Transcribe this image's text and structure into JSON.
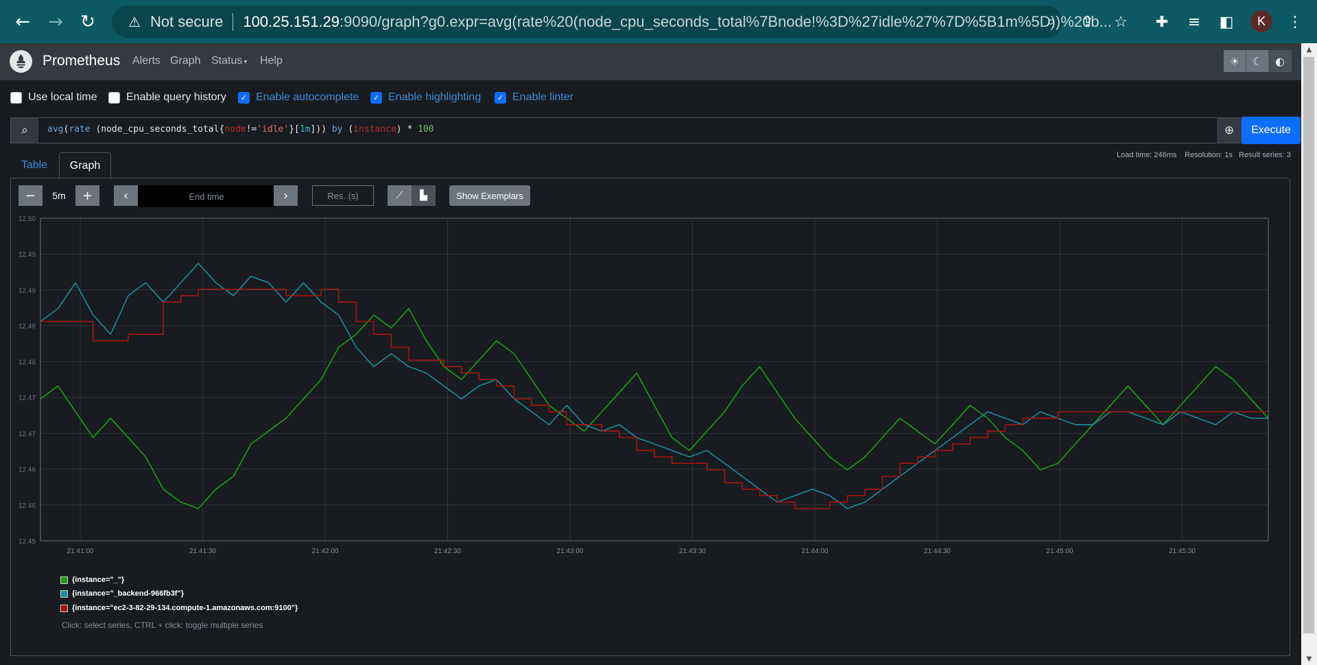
{
  "browser": {
    "security_label": "Not secure",
    "url_host": "100.25.151.29",
    "url_rest": ":9090/graph?g0.expr=avg(rate%20(node_cpu_seconds_total%7Bnode!%3D%27idle%27%7D%5B1m%5D))%20b...",
    "profile_initial": "K",
    "icons": {
      "back": "arrow-left",
      "forward": "arrow-right",
      "reload": "reload",
      "warning": "warning-triangle",
      "zoom": "magnifier",
      "share": "share",
      "bookmark": "star",
      "extensions": "puzzle",
      "media": "playlist",
      "sidepanel": "side-panel",
      "menu": "kebab"
    }
  },
  "navbar": {
    "brand": "Prometheus",
    "links": [
      "Alerts",
      "Graph",
      "Status",
      "Help"
    ],
    "status_caret": "▾"
  },
  "options": [
    {
      "label": "Use local time",
      "checked": false
    },
    {
      "label": "Enable query history",
      "checked": false
    },
    {
      "label": "Enable autocomplete",
      "checked": true
    },
    {
      "label": "Enable highlighting",
      "checked": true
    },
    {
      "label": "Enable linter",
      "checked": true
    }
  ],
  "query": {
    "expression": "avg(rate (node_cpu_seconds_total{node!='idle'}[1m])) by (instance) * 100",
    "execute_label": "Execute"
  },
  "tabs": {
    "table": "Table",
    "graph": "Graph"
  },
  "stats": {
    "load_time": "Load time: 246ms",
    "resolution": "Resolution: 1s",
    "result_series": "Result series: 3"
  },
  "controls": {
    "minus": "−",
    "range": "5m",
    "plus": "+",
    "prev": "‹",
    "end_time_placeholder": "End time",
    "next": "›",
    "res_placeholder": "Res. (s)",
    "show_exemplars": "Show Exemplars"
  },
  "chart_data": {
    "type": "line",
    "x_ticks": [
      "21:41:00",
      "21:41:30",
      "21:42:00",
      "21:42:30",
      "21:43:00",
      "21:43:30",
      "21:44:00",
      "21:44:30",
      "21:45:00",
      "21:45:30"
    ],
    "y_ticks": [
      "12.50",
      "12.49",
      "12.49",
      "12.48",
      "12.48",
      "12.47",
      "12.47",
      "12.46",
      "12.46",
      "12.45"
    ],
    "ylim": [
      12.45,
      12.5
    ],
    "grid": true,
    "series": [
      {
        "name": "{instance=\"_\"}",
        "color": "#1b9e1b",
        "values": [
          12.472,
          12.474,
          12.47,
          12.466,
          12.469,
          12.466,
          12.463,
          12.458,
          12.456,
          12.455,
          12.458,
          12.46,
          12.465,
          12.467,
          12.469,
          12.472,
          12.475,
          12.48,
          12.482,
          12.485,
          12.483,
          12.486,
          12.481,
          12.477,
          12.475,
          12.478,
          12.481,
          12.479,
          12.475,
          12.471,
          12.469,
          12.467,
          12.47,
          12.473,
          12.476,
          12.471,
          12.466,
          12.464,
          12.467,
          12.47,
          12.474,
          12.477,
          12.473,
          12.469,
          12.466,
          12.463,
          12.461,
          12.463,
          12.466,
          12.469,
          12.467,
          12.465,
          12.468,
          12.471,
          12.469,
          12.466,
          12.464,
          12.461,
          12.462,
          12.465,
          12.468,
          12.471,
          12.474,
          12.471,
          12.468,
          12.471,
          12.474,
          12.477,
          12.475,
          12.472,
          12.469
        ]
      },
      {
        "name": "{instance=\"_backend-966fb3f\"}",
        "color": "#1a8f9a",
        "values": [
          12.484,
          12.486,
          12.49,
          12.485,
          12.482,
          12.488,
          12.49,
          12.487,
          12.49,
          12.493,
          12.49,
          12.488,
          12.491,
          12.49,
          12.487,
          12.49,
          12.487,
          12.485,
          12.48,
          12.477,
          12.479,
          12.477,
          12.476,
          12.474,
          12.472,
          12.474,
          12.475,
          12.472,
          12.47,
          12.468,
          12.471,
          12.468,
          12.467,
          12.468,
          12.466,
          12.465,
          12.464,
          12.463,
          12.464,
          12.462,
          12.46,
          12.458,
          12.456,
          12.457,
          12.458,
          12.457,
          12.455,
          12.456,
          12.458,
          12.46,
          12.462,
          12.464,
          12.466,
          12.468,
          12.47,
          12.469,
          12.468,
          12.47,
          12.469,
          12.468,
          12.468,
          12.47,
          12.47,
          12.469,
          12.468,
          12.47,
          12.469,
          12.468,
          12.47,
          12.469,
          12.469
        ]
      },
      {
        "name": "{instance=\"ec2-3-82-29-134.compute-1.amazonaws.com:9100\"}",
        "color": "#a31515",
        "values": [
          12.484,
          12.484,
          12.484,
          12.481,
          12.481,
          12.482,
          12.482,
          12.487,
          12.488,
          12.489,
          12.489,
          12.489,
          12.489,
          12.489,
          12.488,
          12.488,
          12.489,
          12.487,
          12.484,
          12.482,
          12.48,
          12.478,
          12.478,
          12.477,
          12.476,
          12.475,
          12.474,
          12.472,
          12.471,
          12.47,
          12.468,
          12.468,
          12.467,
          12.466,
          12.464,
          12.463,
          12.462,
          12.462,
          12.461,
          12.459,
          12.458,
          12.457,
          12.456,
          12.455,
          12.455,
          12.456,
          12.457,
          12.458,
          12.46,
          12.462,
          12.463,
          12.464,
          12.465,
          12.466,
          12.467,
          12.468,
          12.469,
          12.469,
          12.47,
          12.47,
          12.47,
          12.47,
          12.47,
          12.47,
          12.47,
          12.47,
          12.47,
          12.47,
          12.47,
          12.47,
          12.47
        ]
      }
    ]
  },
  "legend_hint": "Click: select series, CTRL + click: toggle multiple series"
}
